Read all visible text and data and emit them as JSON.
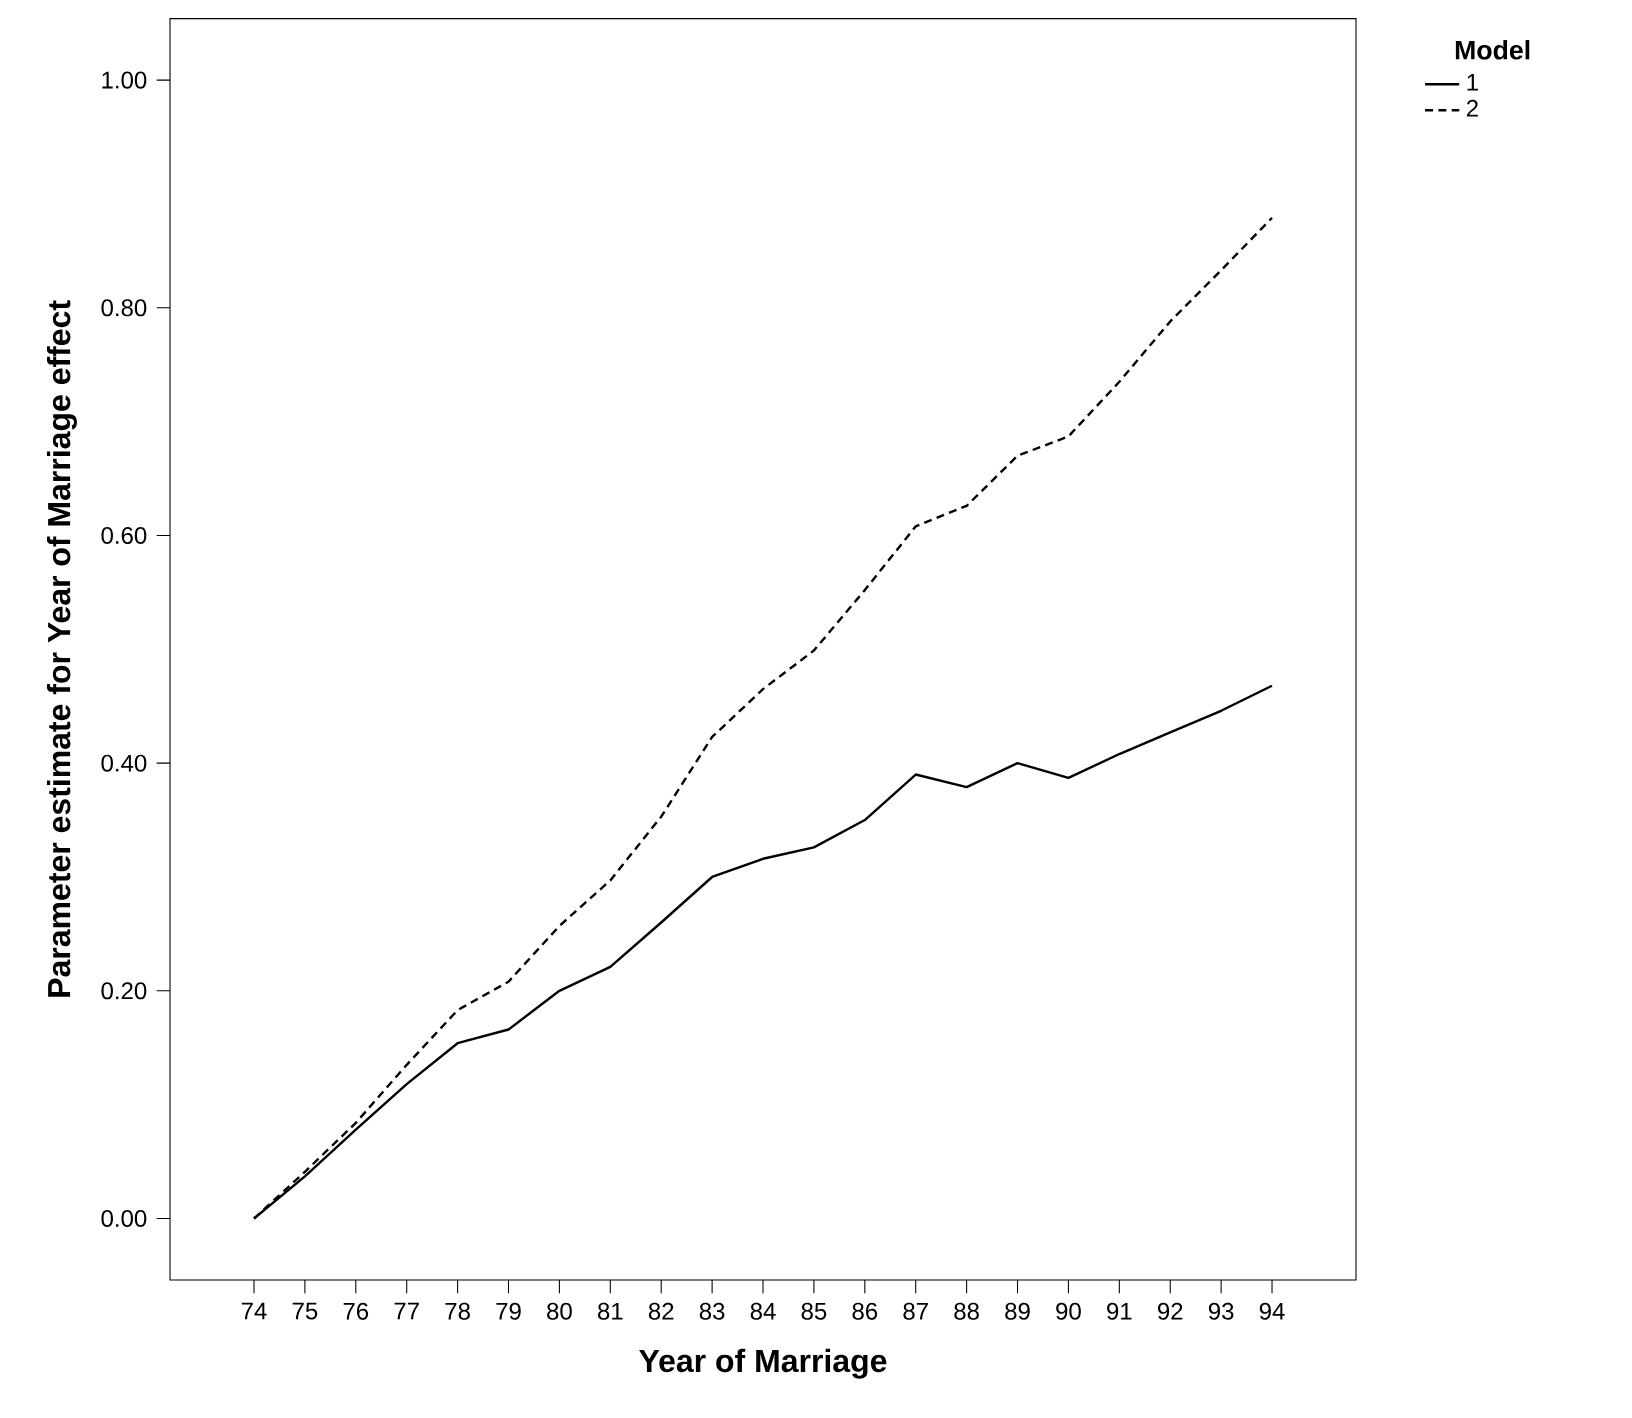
{
  "chart_data": {
    "type": "line",
    "xlabel": "Year of Marriage",
    "ylabel": "Parameter estimate for Year of Marriage effect",
    "legend_title": "Model",
    "legend": "top right",
    "grid": false,
    "categories": [
      "74",
      "75",
      "76",
      "77",
      "78",
      "79",
      "80",
      "81",
      "82",
      "83",
      "84",
      "85",
      "86",
      "87",
      "88",
      "89",
      "90",
      "91",
      "92",
      "93",
      "94"
    ],
    "ylim": [
      -0.054,
      1.054
    ],
    "yticks": [
      {
        "value": 0,
        "label": "0.00"
      },
      {
        "value": 0.2,
        "label": "0.20"
      },
      {
        "value": 0.4,
        "label": "0.40"
      },
      {
        "value": 0.6,
        "label": "0.60"
      },
      {
        "value": 0.8,
        "label": "0.80"
      },
      {
        "value": 1.0,
        "label": "1.00"
      }
    ],
    "series": [
      {
        "name": "1",
        "color": "#000000",
        "line_style": "solid",
        "values": [
          0,
          0.037,
          0.078,
          0.118,
          0.154,
          0.166,
          0.2,
          0.221,
          0.26,
          0.3,
          0.316,
          0.326,
          0.35,
          0.39,
          0.379,
          0.4,
          0.387,
          0.408,
          0.427,
          0.446,
          0.468
        ]
      },
      {
        "name": "2",
        "color": "#000000",
        "line_style": "dashed",
        "values": [
          0,
          0.041,
          0.084,
          0.135,
          0.183,
          0.208,
          0.257,
          0.297,
          0.353,
          0.423,
          0.465,
          0.499,
          0.552,
          0.608,
          0.626,
          0.67,
          0.687,
          0.735,
          0.788,
          0.833,
          0.879
        ]
      }
    ]
  }
}
